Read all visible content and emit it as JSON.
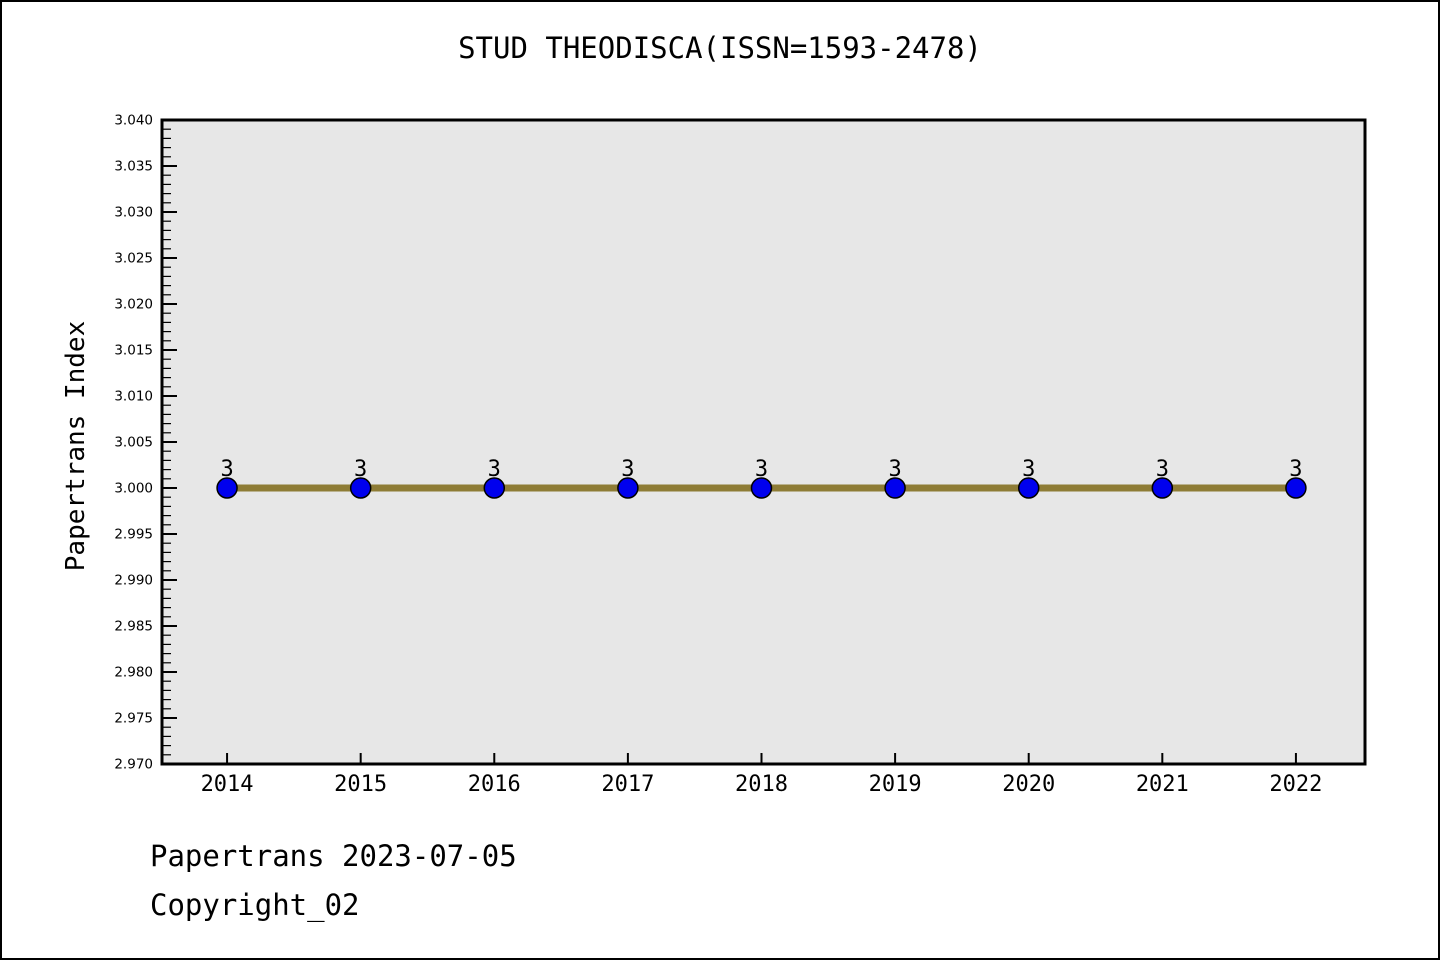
{
  "title": "STUD THEODISCA(ISSN=1593-2478)",
  "ylabel": "Papertrans Index",
  "footer": {
    "line1": "Papertrans 2023-07-05",
    "line2": "Copyright_02"
  },
  "colors": {
    "line": "#8e7c35",
    "marker": "#0000ee",
    "marker_edge": "#000000",
    "plot_bg": "#e7e7e7",
    "axis": "#000000"
  },
  "chart_data": {
    "type": "line",
    "title": "STUD THEODISCA(ISSN=1593-2478)",
    "xlabel": "",
    "ylabel": "Papertrans Index",
    "x": [
      2014,
      2015,
      2016,
      2017,
      2018,
      2019,
      2020,
      2021,
      2022
    ],
    "x_tick_labels": [
      "2014",
      "2015",
      "2016",
      "2017",
      "2018",
      "2019",
      "2020",
      "2021",
      "2022"
    ],
    "series": [
      {
        "name": "Papertrans Index",
        "values": [
          3,
          3,
          3,
          3,
          3,
          3,
          3,
          3,
          3
        ]
      }
    ],
    "point_labels": [
      "3",
      "3",
      "3",
      "3",
      "3",
      "3",
      "3",
      "3",
      "3"
    ],
    "ylim": [
      2.97,
      3.04
    ],
    "xlim": [
      2013.513,
      2022.517
    ],
    "y_major_step": 0.005,
    "y_minor_step": 0.001,
    "y_tick_labels": [
      "2.970",
      "2.975",
      "2.980",
      "2.985",
      "2.990",
      "2.995",
      "3.000",
      "3.005",
      "3.010",
      "3.015",
      "3.020",
      "3.025",
      "3.030",
      "3.035",
      "3.040"
    ],
    "grid": false,
    "legend": "none"
  }
}
